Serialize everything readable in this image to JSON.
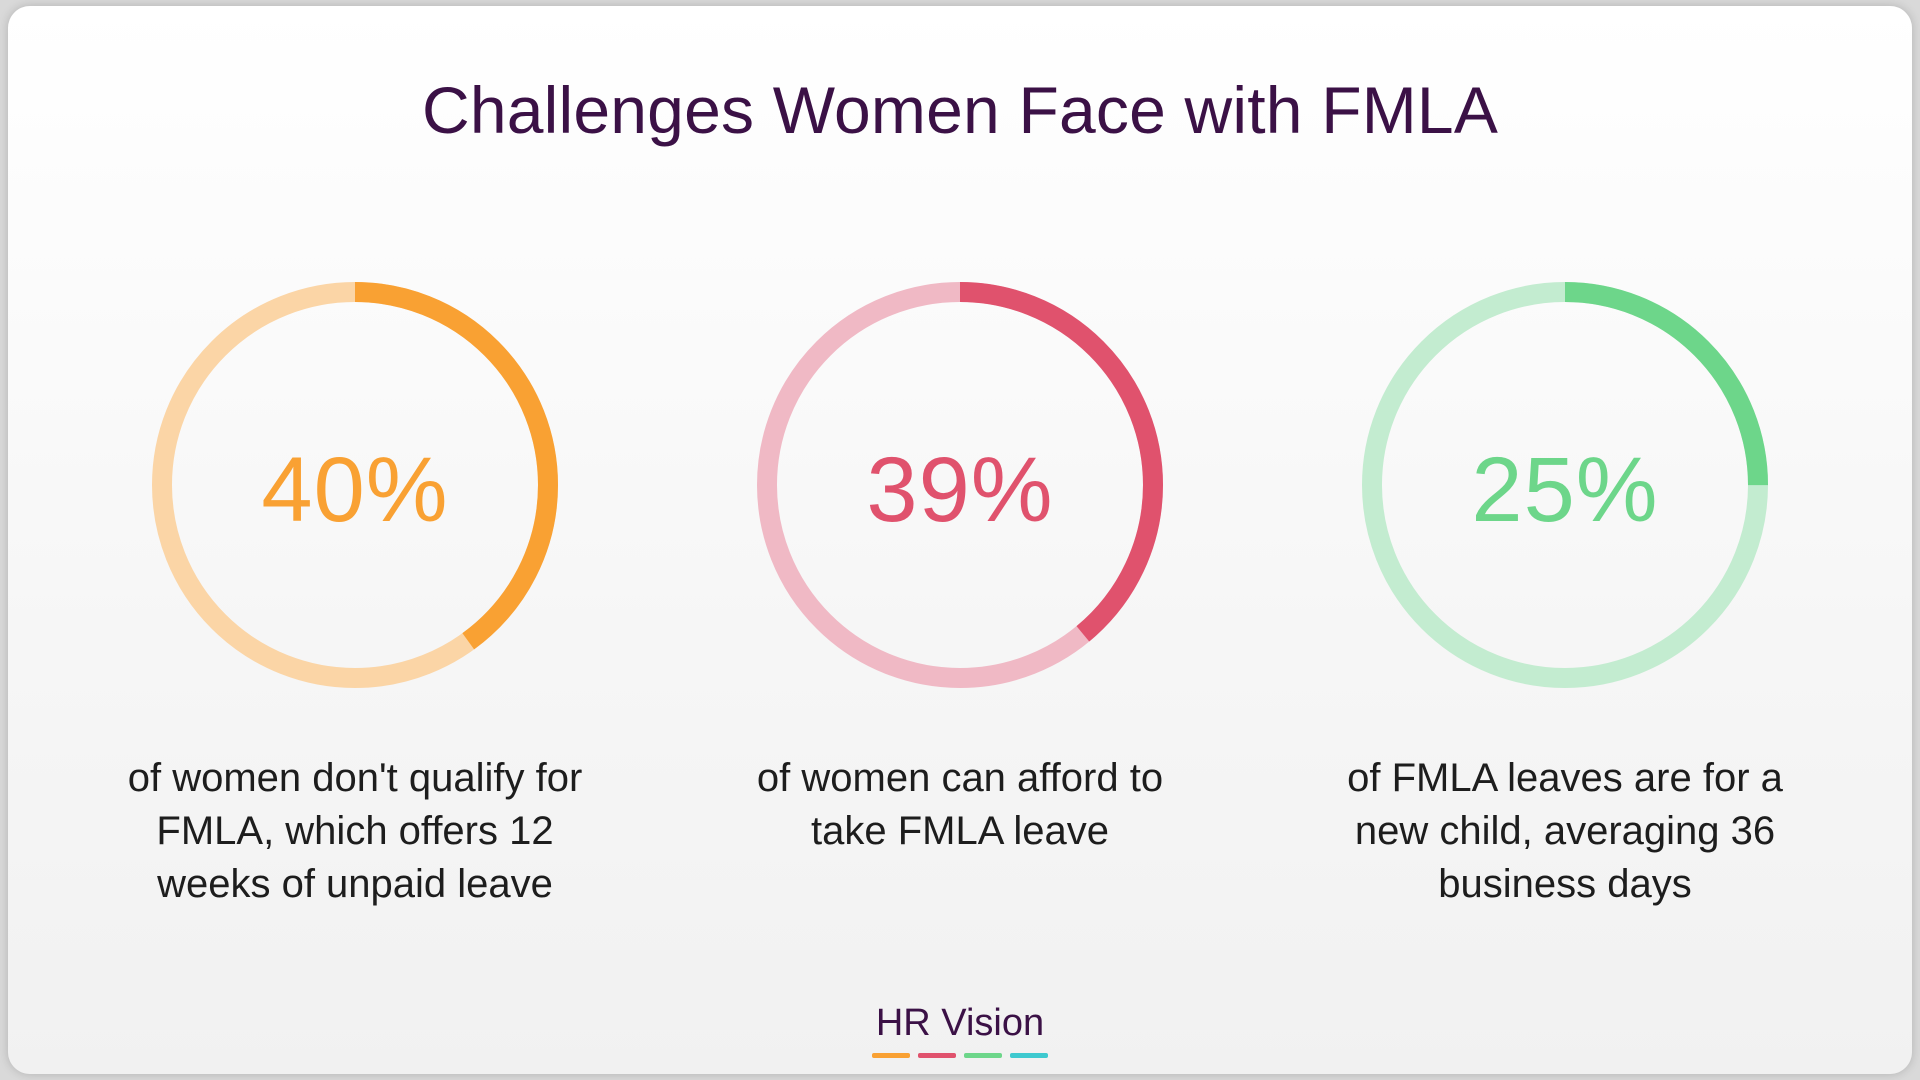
{
  "title": "Challenges Women Face with FMLA",
  "chart_data": {
    "type": "donut",
    "items": [
      {
        "value_label": "40%",
        "value": 40,
        "description": "of women don't qualify for FMLA, which offers 12 weeks of unpaid leave",
        "description_lines": [
          "of women don't qualify for",
          "FMLA, which offers 12",
          "weeks of unpaid leave"
        ],
        "color": "#f9a133",
        "track_color": "#fbd5a6"
      },
      {
        "value_label": "39%",
        "value": 39,
        "description": "of women can afford to take FMLA leave",
        "description_lines": [
          "of women can afford to",
          "take FMLA leave"
        ],
        "color": "#e0526d",
        "track_color": "#f0b9c5"
      },
      {
        "value_label": "25%",
        "value": 25,
        "description": "of FMLA leaves are for a new child, averaging 36 business days",
        "description_lines": [
          "of FMLA leaves are for a",
          "new child, averaging 36",
          "business days"
        ],
        "color": "#6dd68a",
        "track_color": "#c3ecd0"
      }
    ]
  },
  "brand": {
    "name": "HR Vision",
    "bar_colors": [
      "#f9a133",
      "#e0526d",
      "#6dd68a",
      "#3ec9cf"
    ]
  }
}
